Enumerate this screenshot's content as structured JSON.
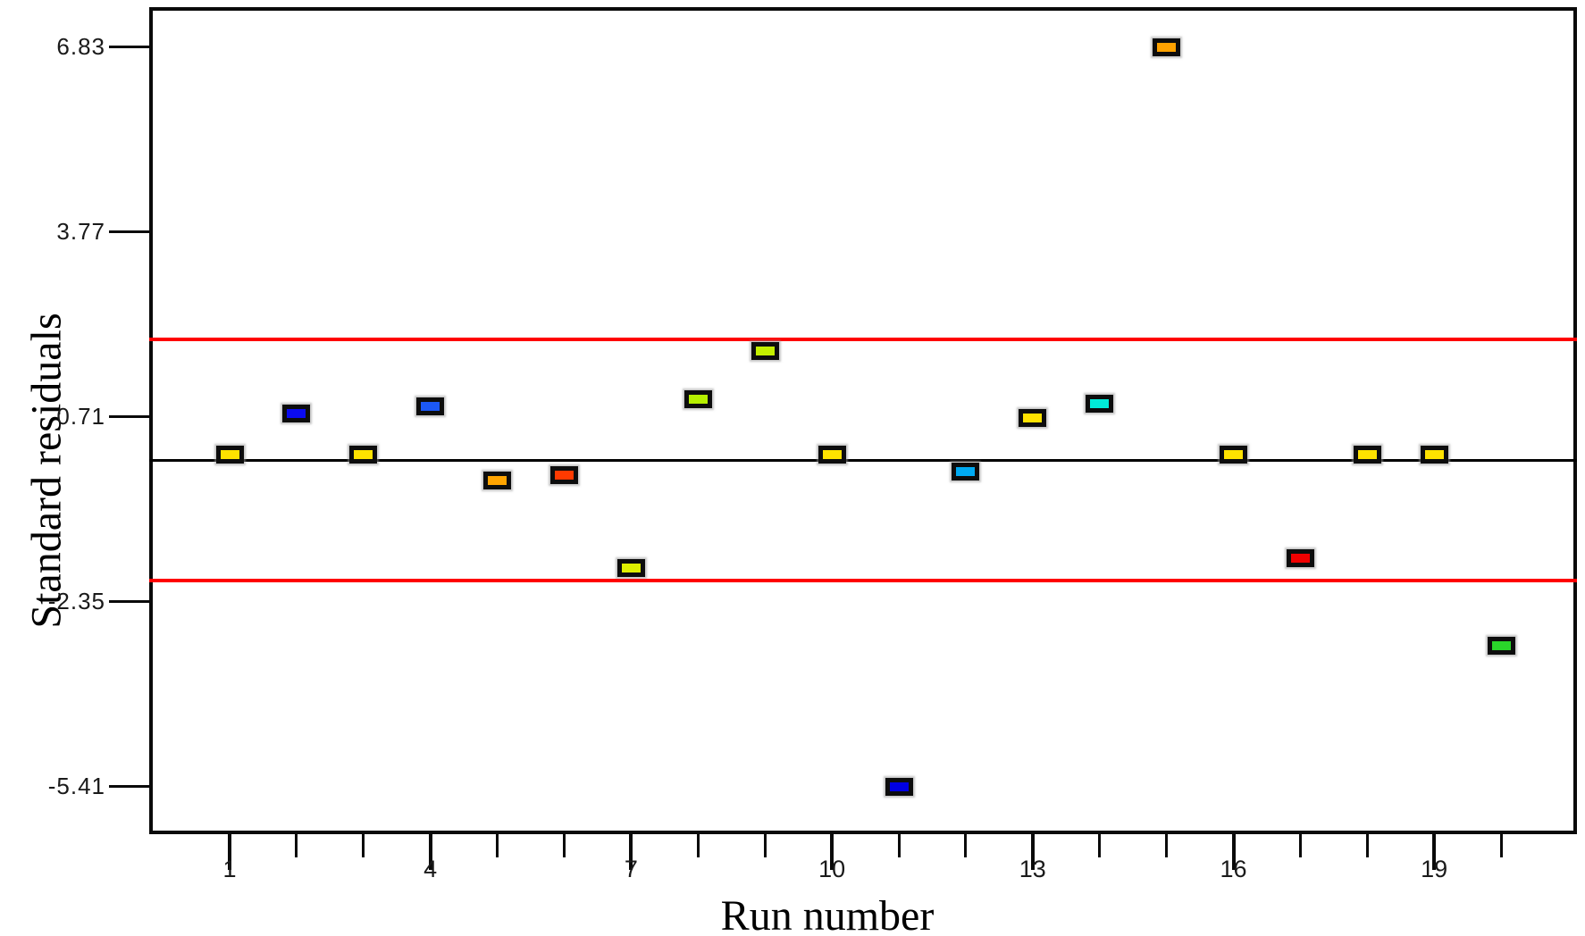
{
  "chart_data": {
    "type": "scatter",
    "title": "",
    "xlabel": "Run number",
    "ylabel": "Standard residuals",
    "marker": "square",
    "background": "#FFFFFF",
    "axis_color": "#0A0A0A",
    "grid": false,
    "x_axis": {
      "major_ticks": [
        {
          "label": "1",
          "run": 1
        },
        {
          "label": "4",
          "run": 4
        },
        {
          "label": "7",
          "run": 7
        },
        {
          "label": "10",
          "run": 10
        },
        {
          "label": "13",
          "run": 13
        },
        {
          "label": "16",
          "run": 16
        },
        {
          "label": "19",
          "run": 19
        }
      ],
      "minor_tick_runs": [
        2,
        3,
        5,
        6,
        8,
        9,
        11,
        12,
        14,
        15,
        17,
        18,
        20
      ],
      "run_range": [
        1,
        20
      ]
    },
    "y_axis": {
      "ticks": [
        {
          "label": "6.83",
          "value": 6.83
        },
        {
          "label": "3.77",
          "value": 3.77
        },
        {
          "label": "0.71",
          "value": 0.71
        },
        {
          "label": "-2.35",
          "value": -2.35
        },
        {
          "label": "-5.41",
          "value": -5.41
        }
      ],
      "ylim": [
        -6.2,
        7.5
      ]
    },
    "center_line": {
      "value": 0.0,
      "color": "#000000"
    },
    "limit_lines": [
      {
        "name": "upper-limit",
        "value": 2.0,
        "color": "#FF0000"
      },
      {
        "name": "lower-limit",
        "value": -2.0,
        "color": "#FF0000"
      }
    ],
    "points": [
      {
        "run": 1,
        "value": 0.09,
        "color": "#FFE200"
      },
      {
        "run": 2,
        "value": 0.77,
        "color": "#0B0BF0"
      },
      {
        "run": 3,
        "value": 0.09,
        "color": "#FFE200"
      },
      {
        "run": 4,
        "value": 0.89,
        "color": "#1C58F5"
      },
      {
        "run": 5,
        "value": -0.34,
        "color": "#FFA400"
      },
      {
        "run": 6,
        "value": -0.25,
        "color": "#FF3A00"
      },
      {
        "run": 7,
        "value": -1.79,
        "color": "#DFF000"
      },
      {
        "run": 8,
        "value": 1.01,
        "color": "#B6F000"
      },
      {
        "run": 9,
        "value": 1.8,
        "color": "#C4F000"
      },
      {
        "run": 10,
        "value": 0.09,
        "color": "#FFE200"
      },
      {
        "run": 11,
        "value": -5.41,
        "color": "#0000E2"
      },
      {
        "run": 12,
        "value": -0.19,
        "color": "#00AAF2"
      },
      {
        "run": 13,
        "value": 0.7,
        "color": "#FFE200"
      },
      {
        "run": 14,
        "value": 0.93,
        "color": "#00ECD8"
      },
      {
        "run": 15,
        "value": 6.83,
        "color": "#FFA200"
      },
      {
        "run": 16,
        "value": 0.09,
        "color": "#FFE200"
      },
      {
        "run": 17,
        "value": -1.63,
        "color": "#F00000"
      },
      {
        "run": 18,
        "value": 0.09,
        "color": "#FFE200"
      },
      {
        "run": 19,
        "value": 0.09,
        "color": "#FFE200"
      },
      {
        "run": 20,
        "value": -3.08,
        "color": "#2AD52A"
      }
    ]
  }
}
